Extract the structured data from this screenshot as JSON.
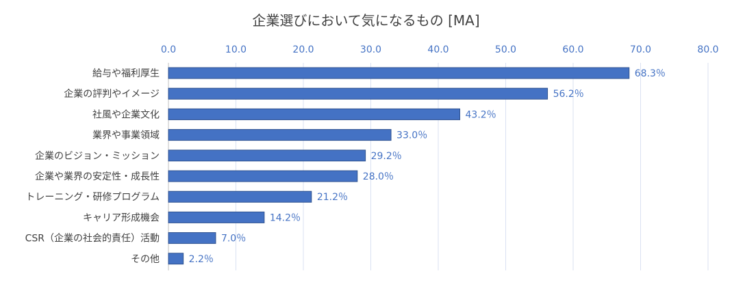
{
  "chart_data": {
    "type": "bar",
    "orientation": "horizontal",
    "title": "企業選びにおいて気になるもの [MA]",
    "xlabel": "",
    "ylabel": "",
    "xlim": [
      0,
      80
    ],
    "x_ticks": [
      "0.0",
      "10.0",
      "20.0",
      "30.0",
      "40.0",
      "50.0",
      "60.0",
      "70.0",
      "80.0"
    ],
    "x_axis_position": "top",
    "grid": true,
    "legend": "none",
    "categories": [
      "給与や福利厚生",
      "企業の評判やイメージ",
      "社風や企業文化",
      "業界や事業領域",
      "企業のビジョン・ミッション",
      "企業や業界の安定性・成長性",
      "トレーニング・研修プログラム",
      "キャリア形成機会",
      "CSR（企業の社会的責任）活動",
      "その他"
    ],
    "values": [
      68.3,
      56.2,
      43.2,
      33.0,
      29.2,
      28.0,
      21.2,
      14.2,
      7.0,
      2.2
    ],
    "data_labels": [
      "68.3％",
      "56.2％",
      "43.2％",
      "33.0％",
      "29.2％",
      "28.0％",
      "21.2％",
      "14.2％",
      "7.0％",
      "2.2％"
    ],
    "colors": {
      "bar": "#4472c4",
      "bar_edge": "#2f528f",
      "grid": "#d9e1f2",
      "text": "#404040",
      "tick": "#4472c4"
    }
  }
}
